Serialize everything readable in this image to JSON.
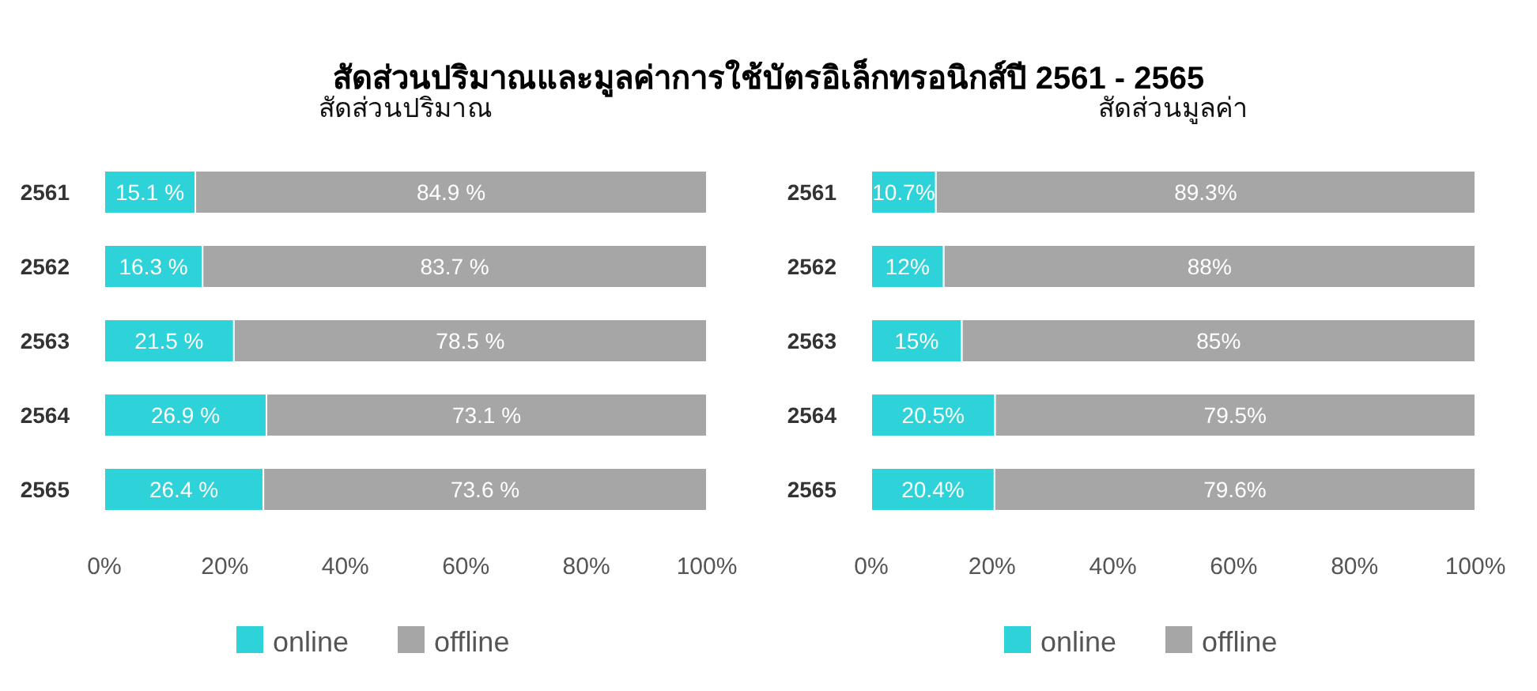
{
  "chart_data": [
    {
      "type": "bar",
      "title": "สัดส่วนปริมาณและมูลค่าการใช้บัตรอิเล็กทรอนิกส์ปี 2561 - 2565",
      "subtitle": "สัดส่วนปริมาณ",
      "orientation": "horizontal",
      "stacked": true,
      "categories": [
        "2561",
        "2562",
        "2563",
        "2564",
        "2565"
      ],
      "series": [
        {
          "name": "online",
          "color": "#2ed3d9",
          "values": [
            15.1,
            16.3,
            21.5,
            26.9,
            26.4
          ],
          "value_labels": [
            "15.1 %",
            "16.3 %",
            "21.5 %",
            "26.9 %",
            "26.4 %"
          ]
        },
        {
          "name": "offline",
          "color": "#a6a6a6",
          "values": [
            84.9,
            83.7,
            78.5,
            73.1,
            73.6
          ],
          "value_labels": [
            "84.9 %",
            "83.7 %",
            "78.5 %",
            "73.1 %",
            "73.6 %"
          ]
        }
      ],
      "xlim": [
        0,
        100
      ],
      "xticks": [
        {
          "value": 0,
          "label": "0%"
        },
        {
          "value": 20,
          "label": "20%"
        },
        {
          "value": 40,
          "label": "40%"
        },
        {
          "value": 60,
          "label": "60%"
        },
        {
          "value": 80,
          "label": "80%"
        },
        {
          "value": 100,
          "label": "100%"
        }
      ],
      "legend": "bottom",
      "grid": false
    },
    {
      "type": "bar",
      "subtitle": "สัดส่วนมูลค่า",
      "orientation": "horizontal",
      "stacked": true,
      "categories": [
        "2561",
        "2562",
        "2563",
        "2564",
        "2565"
      ],
      "series": [
        {
          "name": "online",
          "color": "#2ed3d9",
          "values": [
            10.7,
            12,
            15,
            20.5,
            20.4
          ],
          "value_labels": [
            "10.7%",
            "12%",
            "15%",
            "20.5%",
            "20.4%"
          ]
        },
        {
          "name": "offline",
          "color": "#a6a6a6",
          "values": [
            89.3,
            88,
            85,
            79.5,
            79.6
          ],
          "value_labels": [
            "89.3%",
            "88%",
            "85%",
            "79.5%",
            "79.6%"
          ]
        }
      ],
      "xlim": [
        0,
        100
      ],
      "xticks": [
        {
          "value": 0,
          "label": "0%"
        },
        {
          "value": 20,
          "label": "20%"
        },
        {
          "value": 40,
          "label": "40%"
        },
        {
          "value": 60,
          "label": "60%"
        },
        {
          "value": 80,
          "label": "80%"
        },
        {
          "value": 100,
          "label": "100%"
        }
      ],
      "legend": "bottom",
      "grid": false
    }
  ]
}
